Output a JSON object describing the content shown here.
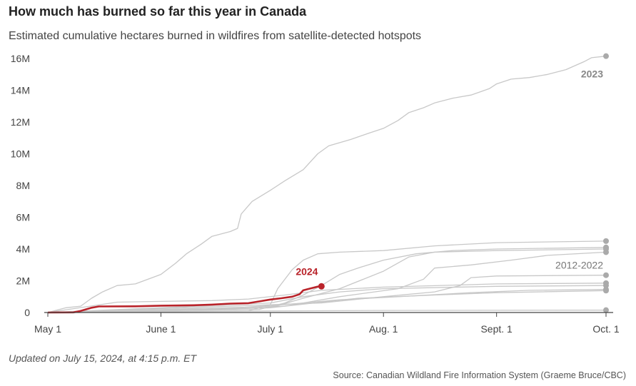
{
  "header": {
    "title": "How much has burned so far this year in Canada",
    "subtitle": "Estimated cumulative hectares burned in wildfires from satellite-detected hotspots"
  },
  "footer": {
    "updated": "Updated on July 15, 2024, at 4:15 p.m. ET",
    "source": "Source: Canadian Wildland Fire Information System (Graeme Bruce/CBC)"
  },
  "colors": {
    "highlight": "#b9232a",
    "highlight_year": "#222222",
    "history": "#c8c8c8",
    "endpoint": "#aaaaaa",
    "axis": "#444444"
  },
  "chart_data": {
    "type": "line",
    "title": "How much has burned so far this year in Canada",
    "subtitle": "Estimated cumulative hectares burned in wildfires from satellite-detected hotspots",
    "xlabel": "",
    "ylabel": "",
    "x_ticks": [
      {
        "date": "2024-05-01",
        "label": "May 1"
      },
      {
        "date": "2024-06-01",
        "label": "June 1"
      },
      {
        "date": "2024-07-01",
        "label": "July 1"
      },
      {
        "date": "2024-08-01",
        "label": "Aug. 1"
      },
      {
        "date": "2024-09-01",
        "label": "Sept. 1"
      },
      {
        "date": "2024-10-01",
        "label": "Oct. 1"
      }
    ],
    "y_ticks": [
      {
        "value": 0,
        "label": "0"
      },
      {
        "value": 2000000,
        "label": "2M"
      },
      {
        "value": 4000000,
        "label": "4M"
      },
      {
        "value": 6000000,
        "label": "6M"
      },
      {
        "value": 8000000,
        "label": "8M"
      },
      {
        "value": 10000000,
        "label": "10M"
      },
      {
        "value": 12000000,
        "label": "12M"
      },
      {
        "value": 14000000,
        "label": "14M"
      },
      {
        "value": 16000000,
        "label": "16M"
      }
    ],
    "xlim": [
      "2024-05-01",
      "2024-10-01"
    ],
    "ylim": [
      0,
      16000000
    ],
    "grid": false,
    "annotations": {
      "highlight_label": "2024",
      "record_label": "2023",
      "range_label": "2012-2022"
    },
    "series": [
      {
        "name": "2024",
        "highlight": true,
        "endpoint": true,
        "points": [
          [
            "2024-05-01",
            0
          ],
          [
            "2024-05-08",
            10000
          ],
          [
            "2024-05-10",
            100000
          ],
          [
            "2024-05-13",
            300000
          ],
          [
            "2024-05-15",
            380000
          ],
          [
            "2024-05-25",
            390000
          ],
          [
            "2024-06-01",
            430000
          ],
          [
            "2024-06-10",
            460000
          ],
          [
            "2024-06-15",
            500000
          ],
          [
            "2024-06-20",
            560000
          ],
          [
            "2024-06-25",
            590000
          ],
          [
            "2024-06-28",
            700000
          ],
          [
            "2024-07-01",
            820000
          ],
          [
            "2024-07-04",
            900000
          ],
          [
            "2024-07-07",
            1000000
          ],
          [
            "2024-07-09",
            1150000
          ],
          [
            "2024-07-10",
            1400000
          ],
          [
            "2024-07-12",
            1520000
          ],
          [
            "2024-07-14",
            1630000
          ],
          [
            "2024-07-15",
            1650000
          ]
        ]
      },
      {
        "name": "2023",
        "endpoint": true,
        "points": [
          [
            "2024-05-01",
            0
          ],
          [
            "2024-05-06",
            300000
          ],
          [
            "2024-05-10",
            400000
          ],
          [
            "2024-05-13",
            900000
          ],
          [
            "2024-05-16",
            1300000
          ],
          [
            "2024-05-20",
            1700000
          ],
          [
            "2024-05-25",
            1800000
          ],
          [
            "2024-06-01",
            2400000
          ],
          [
            "2024-06-05",
            3100000
          ],
          [
            "2024-06-08",
            3700000
          ],
          [
            "2024-06-12",
            4300000
          ],
          [
            "2024-06-15",
            4800000
          ],
          [
            "2024-06-20",
            5100000
          ],
          [
            "2024-06-22",
            5300000
          ],
          [
            "2024-06-23",
            6200000
          ],
          [
            "2024-06-26",
            7000000
          ],
          [
            "2024-07-01",
            7700000
          ],
          [
            "2024-07-05",
            8300000
          ],
          [
            "2024-07-10",
            9000000
          ],
          [
            "2024-07-14",
            10000000
          ],
          [
            "2024-07-17",
            10500000
          ],
          [
            "2024-07-23",
            10900000
          ],
          [
            "2024-07-28",
            11300000
          ],
          [
            "2024-08-01",
            11600000
          ],
          [
            "2024-08-05",
            12100000
          ],
          [
            "2024-08-08",
            12600000
          ],
          [
            "2024-08-12",
            12900000
          ],
          [
            "2024-08-15",
            13200000
          ],
          [
            "2024-08-20",
            13500000
          ],
          [
            "2024-08-25",
            13700000
          ],
          [
            "2024-08-30",
            14100000
          ],
          [
            "2024-09-01",
            14400000
          ],
          [
            "2024-09-05",
            14700000
          ],
          [
            "2024-09-10",
            14800000
          ],
          [
            "2024-09-15",
            15000000
          ],
          [
            "2024-09-20",
            15300000
          ],
          [
            "2024-09-25",
            15800000
          ],
          [
            "2024-09-27",
            16050000
          ],
          [
            "2024-10-01",
            16150000
          ]
        ]
      },
      {
        "name": "",
        "endpoint": true,
        "points": [
          [
            "2024-05-01",
            0
          ],
          [
            "2024-06-25",
            100000
          ],
          [
            "2024-07-01",
            500000
          ],
          [
            "2024-07-03",
            1500000
          ],
          [
            "2024-07-07",
            2700000
          ],
          [
            "2024-07-10",
            3300000
          ],
          [
            "2024-07-14",
            3700000
          ],
          [
            "2024-07-20",
            3800000
          ],
          [
            "2024-08-01",
            3900000
          ],
          [
            "2024-08-15",
            4200000
          ],
          [
            "2024-09-01",
            4400000
          ],
          [
            "2024-10-01",
            4500000
          ]
        ]
      },
      {
        "name": "",
        "endpoint": true,
        "points": [
          [
            "2024-05-01",
            0
          ],
          [
            "2024-06-28",
            200000
          ],
          [
            "2024-07-05",
            600000
          ],
          [
            "2024-07-10",
            1100000
          ],
          [
            "2024-07-15",
            1700000
          ],
          [
            "2024-07-20",
            2400000
          ],
          [
            "2024-07-25",
            2800000
          ],
          [
            "2024-08-01",
            3300000
          ],
          [
            "2024-08-10",
            3700000
          ],
          [
            "2024-08-20",
            3900000
          ],
          [
            "2024-09-01",
            4000000
          ],
          [
            "2024-10-01",
            4100000
          ]
        ]
      },
      {
        "name": "",
        "endpoint": true,
        "points": [
          [
            "2024-05-01",
            0
          ],
          [
            "2024-07-01",
            300000
          ],
          [
            "2024-07-10",
            900000
          ],
          [
            "2024-07-20",
            1500000
          ],
          [
            "2024-08-01",
            2600000
          ],
          [
            "2024-08-08",
            3500000
          ],
          [
            "2024-08-15",
            3800000
          ],
          [
            "2024-09-01",
            3900000
          ],
          [
            "2024-10-01",
            4000000
          ]
        ]
      },
      {
        "name": "",
        "endpoint": true,
        "points": [
          [
            "2024-05-01",
            0
          ],
          [
            "2024-07-05",
            400000
          ],
          [
            "2024-07-20",
            1000000
          ],
          [
            "2024-08-05",
            1500000
          ],
          [
            "2024-08-12",
            2100000
          ],
          [
            "2024-08-15",
            2800000
          ],
          [
            "2024-08-25",
            3000000
          ],
          [
            "2024-09-05",
            3300000
          ],
          [
            "2024-09-15",
            3600000
          ],
          [
            "2024-10-01",
            3800000
          ]
        ]
      },
      {
        "name": "",
        "endpoint": true,
        "points": [
          [
            "2024-05-01",
            0
          ],
          [
            "2024-07-15",
            600000
          ],
          [
            "2024-08-01",
            1000000
          ],
          [
            "2024-08-15",
            1300000
          ],
          [
            "2024-08-22",
            1700000
          ],
          [
            "2024-08-25",
            2200000
          ],
          [
            "2024-09-01",
            2300000
          ],
          [
            "2024-10-01",
            2350000
          ]
        ]
      },
      {
        "name": "",
        "endpoint": true,
        "points": [
          [
            "2024-05-01",
            0
          ],
          [
            "2024-05-20",
            650000
          ],
          [
            "2024-06-01",
            700000
          ],
          [
            "2024-06-15",
            750000
          ],
          [
            "2024-06-25",
            850000
          ],
          [
            "2024-07-05",
            1100000
          ],
          [
            "2024-07-15",
            1400000
          ],
          [
            "2024-08-01",
            1600000
          ],
          [
            "2024-09-01",
            1800000
          ],
          [
            "2024-10-01",
            1850000
          ]
        ]
      },
      {
        "name": "",
        "endpoint": true,
        "points": [
          [
            "2024-05-01",
            0
          ],
          [
            "2024-06-01",
            300000
          ],
          [
            "2024-07-01",
            600000
          ],
          [
            "2024-07-10",
            1000000
          ],
          [
            "2024-07-20",
            1300000
          ],
          [
            "2024-08-01",
            1500000
          ],
          [
            "2024-09-01",
            1650000
          ],
          [
            "2024-10-01",
            1700000
          ]
        ]
      },
      {
        "name": "",
        "endpoint": true,
        "points": [
          [
            "2024-05-01",
            0
          ],
          [
            "2024-06-15",
            200000
          ],
          [
            "2024-07-05",
            500000
          ],
          [
            "2024-07-20",
            800000
          ],
          [
            "2024-08-05",
            1000000
          ],
          [
            "2024-08-25",
            1250000
          ],
          [
            "2024-09-10",
            1400000
          ],
          [
            "2024-10-01",
            1450000
          ]
        ]
      },
      {
        "name": "",
        "endpoint": true,
        "points": [
          [
            "2024-05-01",
            0
          ],
          [
            "2024-06-01",
            100000
          ],
          [
            "2024-07-01",
            300000
          ],
          [
            "2024-07-25",
            900000
          ],
          [
            "2024-08-15",
            1100000
          ],
          [
            "2024-09-01",
            1250000
          ],
          [
            "2024-10-01",
            1380000
          ]
        ]
      },
      {
        "name": "",
        "endpoint": true,
        "points": [
          [
            "2024-05-01",
            0
          ],
          [
            "2024-06-01",
            50000
          ],
          [
            "2024-07-01",
            100000
          ],
          [
            "2024-08-01",
            130000
          ],
          [
            "2024-10-01",
            150000
          ]
        ]
      }
    ]
  }
}
